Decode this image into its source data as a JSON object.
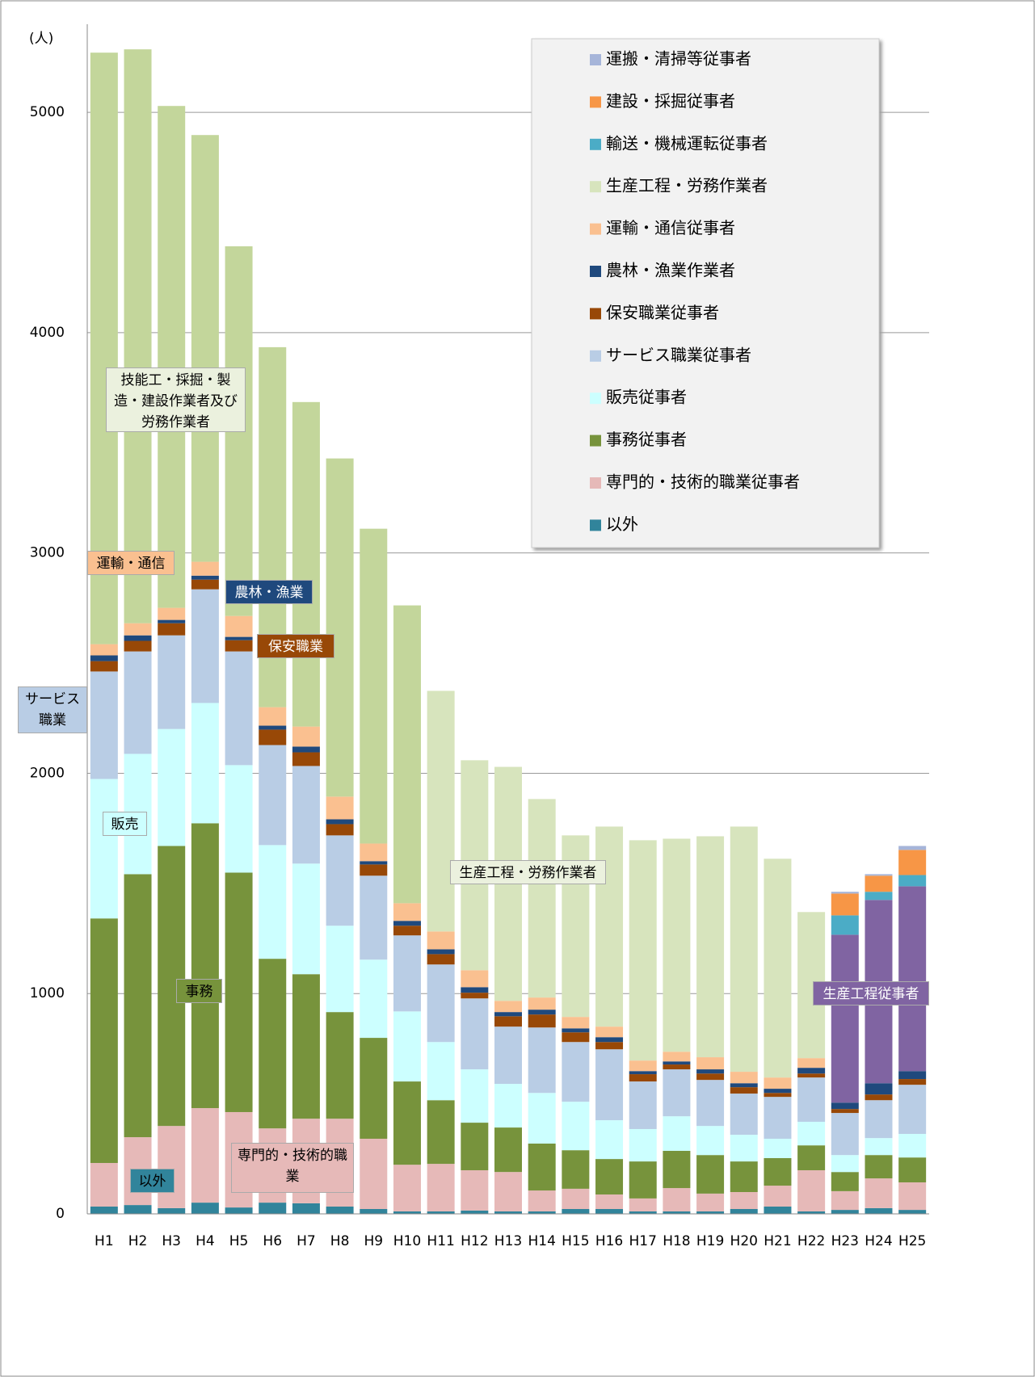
{
  "chart_data": {
    "type": "stacked_bar",
    "y_label": "(人)",
    "categories": [
      "H1",
      "H2",
      "H3",
      "H4",
      "H5",
      "H6",
      "H7",
      "H8",
      "H9",
      "H10",
      "H11",
      "H12",
      "H13",
      "H14",
      "H15",
      "H16",
      "H17",
      "H18",
      "H19",
      "H20",
      "H21",
      "H22",
      "H23",
      "H24",
      "H25"
    ],
    "ylim": [
      0,
      5400
    ],
    "yticks": [
      0,
      1000,
      2000,
      3000,
      4000,
      5000
    ],
    "grid": true,
    "series": [
      {
        "name": "以外",
        "color": "#31849b",
        "legend": true,
        "values": [
          33,
          40,
          26,
          51,
          29,
          51,
          48,
          33,
          22,
          11,
          11,
          15,
          11,
          11,
          22,
          22,
          11,
          11,
          11,
          22,
          33,
          11,
          18,
          26,
          18
        ]
      },
      {
        "name": "専門的・技術的職業従事者",
        "color": "#e6b9b8",
        "legend": true,
        "values": [
          198,
          308,
          373,
          429,
          433,
          337,
          384,
          399,
          319,
          212,
          216,
          183,
          179,
          95,
          92,
          66,
          59,
          106,
          81,
          77,
          95,
          187,
          85,
          135,
          125
        ]
      },
      {
        "name": "事務従事者",
        "color": "#77933c",
        "legend": true,
        "values": [
          1110,
          1194,
          1271,
          1293,
          1087,
          770,
          656,
          484,
          458,
          378,
          289,
          216,
          202,
          213,
          175,
          161,
          168,
          169,
          175,
          139,
          125,
          113,
          87,
          106,
          113
        ]
      },
      {
        "name": "販売従事者",
        "color": "#ccffff",
        "legend": true,
        "values": [
          633,
          546,
          531,
          546,
          488,
          516,
          502,
          392,
          355,
          318,
          264,
          242,
          198,
          230,
          220,
          176,
          147,
          157,
          132,
          121,
          88,
          107,
          77,
          77,
          107
        ]
      },
      {
        "name": "サービス職業従事者",
        "color": "#b9cde5",
        "legend": true,
        "values": [
          488,
          465,
          425,
          516,
          516,
          454,
          443,
          410,
          381,
          345,
          352,
          322,
          260,
          297,
          271,
          322,
          216,
          213,
          209,
          187,
          190,
          201,
          191,
          172,
          223
        ]
      },
      {
        "name": "保安職業従事者",
        "color": "#984807",
        "legend": true,
        "values": [
          47,
          48,
          55,
          44,
          51,
          70,
          62,
          51,
          51,
          44,
          47,
          26,
          47,
          59,
          44,
          33,
          33,
          22,
          29,
          29,
          18,
          18,
          18,
          26,
          26
        ]
      },
      {
        "name": "農林・漁業作業者",
        "color": "#1f497d",
        "legend": true,
        "values": [
          26,
          25,
          15,
          18,
          15,
          18,
          26,
          22,
          15,
          22,
          22,
          25,
          19,
          22,
          18,
          22,
          14,
          14,
          19,
          18,
          19,
          26,
          29,
          51,
          36
        ]
      },
      {
        "name": "運輸・通信従事者",
        "color": "#fac090",
        "legend": true,
        "values": [
          51,
          55,
          55,
          63,
          95,
          84,
          91,
          103,
          80,
          80,
          81,
          77,
          51,
          55,
          52,
          48,
          48,
          44,
          55,
          52,
          51,
          44,
          null,
          null,
          null
        ]
      },
      {
        "name": "技能工・採掘・製造・建設作業者及び労務作業者",
        "color": "#c3d69b",
        "legend": false,
        "values": [
          2685,
          2605,
          2278,
          1937,
          1678,
          1634,
          1473,
          1535,
          1429,
          1352,
          null,
          null,
          null,
          null,
          null,
          null,
          null,
          null,
          null,
          null,
          null,
          null,
          null,
          null,
          null
        ]
      },
      {
        "name": "生産工程・労務作業者",
        "color": "#d7e4bd",
        "legend": true,
        "values": [
          null,
          null,
          null,
          null,
          null,
          null,
          null,
          null,
          null,
          null,
          1092,
          953,
          1062,
          901,
          824,
          908,
          1000,
          967,
          1003,
          1113,
          993,
          663,
          null,
          null,
          null
        ]
      },
      {
        "name": "生産工程従事者",
        "color": "#8064a2",
        "legend": false,
        "values": [
          null,
          null,
          null,
          null,
          null,
          null,
          null,
          null,
          null,
          null,
          null,
          null,
          null,
          null,
          null,
          null,
          null,
          null,
          null,
          null,
          null,
          null,
          762,
          832,
          839
        ]
      },
      {
        "name": "輸送・機械運転従事者",
        "color": "#4bacc6",
        "legend": true,
        "values": [
          null,
          null,
          null,
          null,
          null,
          null,
          null,
          null,
          null,
          null,
          null,
          null,
          null,
          null,
          null,
          null,
          null,
          null,
          null,
          null,
          null,
          null,
          88,
          37,
          51
        ]
      },
      {
        "name": "建設・採掘従事者",
        "color": "#f79646",
        "legend": true,
        "values": [
          null,
          null,
          null,
          null,
          null,
          null,
          null,
          null,
          null,
          null,
          null,
          null,
          null,
          null,
          null,
          null,
          null,
          null,
          null,
          null,
          null,
          null,
          99,
          73,
          114
        ]
      },
      {
        "name": "運搬・清掃等従事者",
        "color": "#a6b5d9",
        "legend": true,
        "values": [
          null,
          null,
          null,
          null,
          null,
          null,
          null,
          null,
          null,
          null,
          null,
          null,
          null,
          null,
          null,
          null,
          null,
          null,
          null,
          null,
          null,
          null,
          8,
          7,
          18
        ]
      }
    ],
    "annotations": [
      {
        "text": "運輸・通信",
        "series": 7
      },
      {
        "text": "農林・漁業",
        "series": 6
      },
      {
        "text": "保安職業",
        "series": 5
      },
      {
        "text": "サービス職業",
        "series": 4
      },
      {
        "text": "販売",
        "series": 3
      },
      {
        "text": "事務",
        "series": 2
      },
      {
        "text": "専門的・技術的職業",
        "series": 1
      },
      {
        "text": "以外",
        "series": 0
      }
    ]
  }
}
